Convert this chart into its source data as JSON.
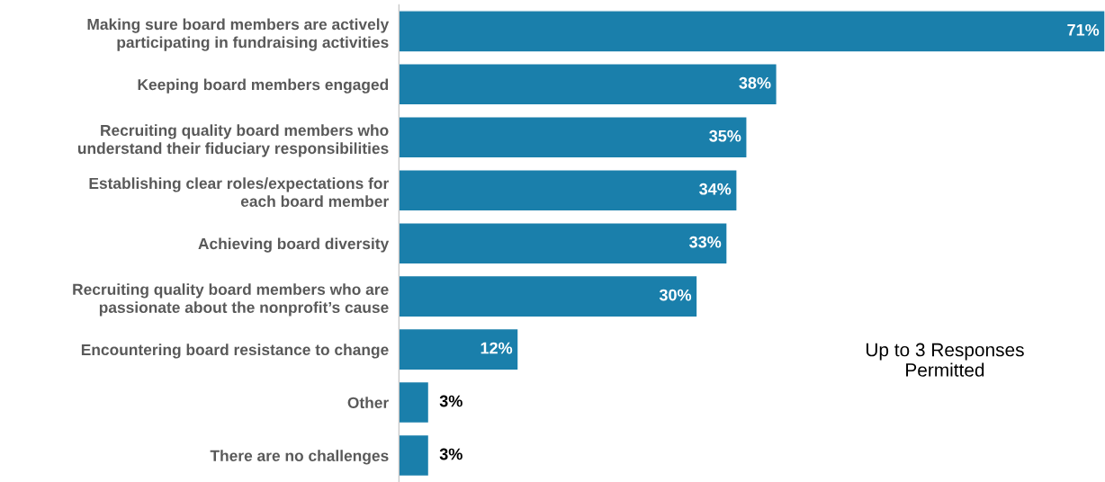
{
  "chart_data": {
    "type": "bar",
    "orientation": "horizontal",
    "categories": [
      "Making sure board members are actively\nparticipating in fundraising activities",
      "Keeping board members engaged",
      "Recruiting quality board members who\nunderstand their fiduciary responsibilities",
      "Establishing clear roles/expectations for\neach board member",
      "Achieving board diversity",
      "Recruiting quality board members who are\npassionate about the nonprofit’s cause",
      "Encountering board resistance to change",
      "Other",
      "There are no challenges"
    ],
    "values": [
      71,
      38,
      35,
      34,
      33,
      30,
      12,
      3,
      3
    ],
    "value_labels": [
      "71%",
      "38%",
      "35%",
      "34%",
      "33%",
      "30%",
      "12%",
      "3%",
      "3%"
    ],
    "color": "#1a7fab",
    "annotations": [
      "Up to 3 Responses\nPermitted"
    ],
    "grid": false,
    "legend": false
  }
}
